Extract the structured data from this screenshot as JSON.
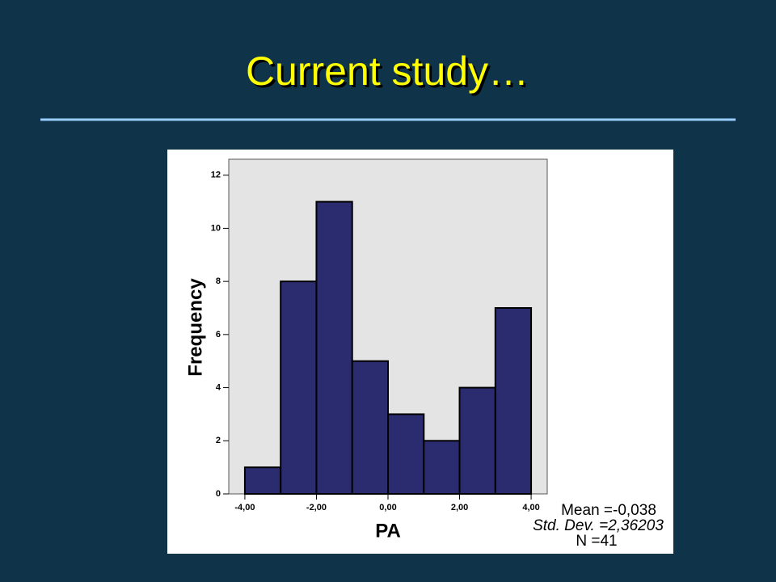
{
  "chart_data": {
    "type": "histogram",
    "title": "Current study…",
    "xlabel": "PA",
    "ylabel": "Frequency",
    "bins": [
      -4,
      -3,
      -2,
      -1,
      0,
      1,
      2,
      3,
      4
    ],
    "values": [
      1,
      8,
      11,
      5,
      3,
      2,
      4,
      7
    ],
    "color": "#2b2b70",
    "xlim": [
      -4.45,
      4.45
    ],
    "xticks": [
      {
        "value": -4,
        "label": "-4,00"
      },
      {
        "value": -2,
        "label": "-2,00"
      },
      {
        "value": 0,
        "label": "0,00"
      },
      {
        "value": 2,
        "label": "2,00"
      },
      {
        "value": 4,
        "label": "4,00"
      }
    ],
    "ylim": [
      0,
      12.6
    ],
    "yticks": [
      0,
      2,
      4,
      6,
      8,
      10,
      12
    ],
    "annotations": [
      "Mean =-0,038",
      "Std. Dev. =2,36203",
      "N =41"
    ]
  }
}
